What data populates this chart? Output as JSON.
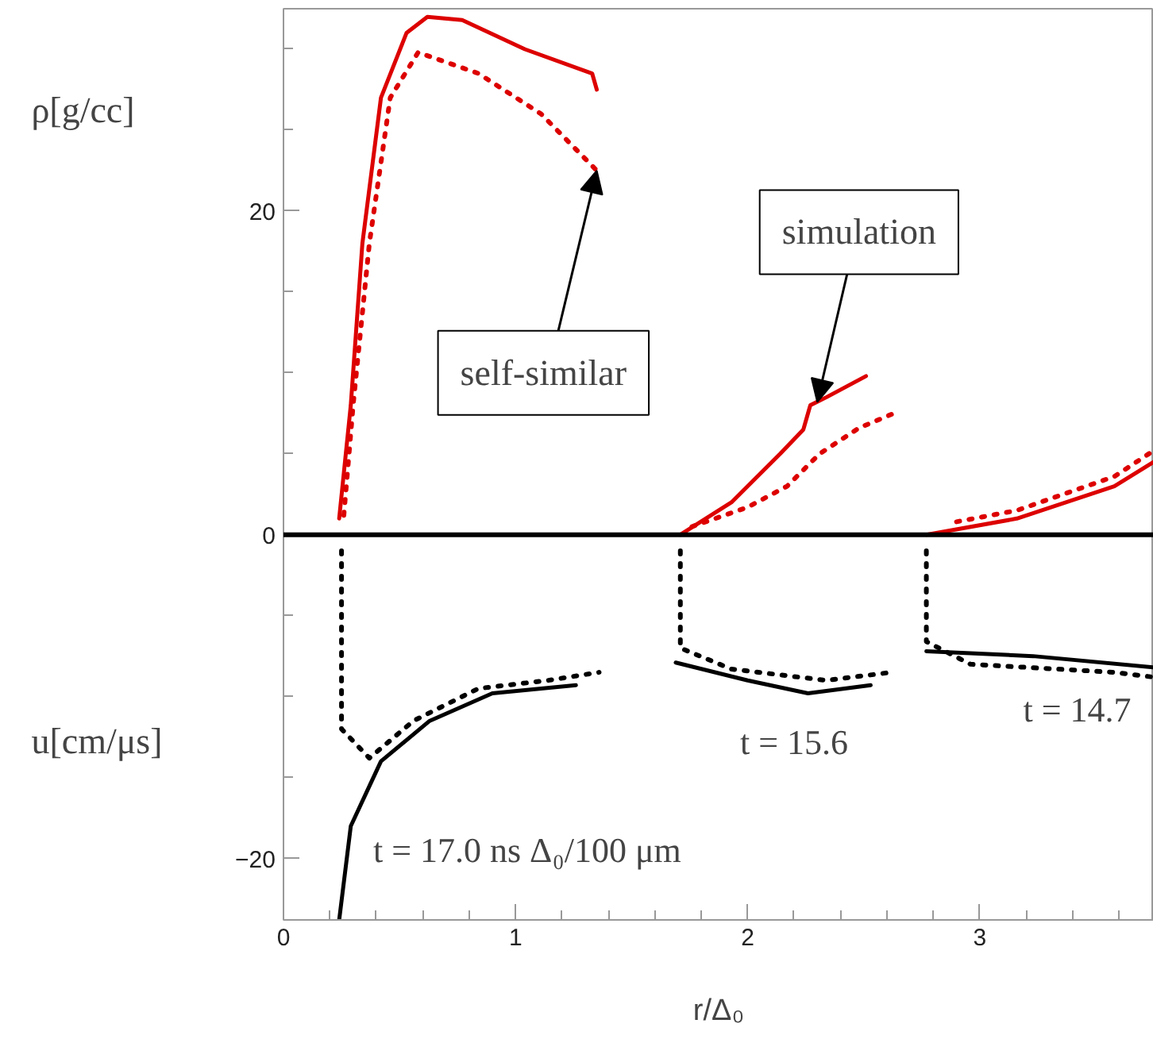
{
  "chart_data": {
    "type": "line",
    "xlabel": "r/Δ₀",
    "ylabel": "ρ[g/cc]",
    "xlim": [
      0,
      3.75
    ],
    "ylim": [
      -23.8,
      32.5
    ],
    "xticks": [
      0,
      1,
      2,
      3
    ],
    "yticks": [
      -20,
      0,
      20
    ],
    "grid": false,
    "ref_lines": [
      {
        "axis": "y",
        "value": 0,
        "color": "#000000"
      }
    ],
    "series": [
      {
        "color": "#dd0000",
        "line_style": "solid",
        "x": [
          0.24,
          0.29,
          0.34,
          0.42,
          0.53,
          0.62,
          0.77,
          1.04,
          1.33,
          1.35
        ],
        "values": [
          1,
          8,
          18,
          27,
          31,
          32,
          31.8,
          30,
          28.5,
          27.5
        ]
      },
      {
        "color": "#dd0000",
        "line_style": "solid",
        "x": [
          1.71,
          1.93,
          2.14,
          2.24,
          2.27,
          2.34,
          2.51
        ],
        "values": [
          0,
          2,
          5,
          6.5,
          8,
          8.5,
          9.8
        ]
      },
      {
        "color": "#dd0000",
        "line_style": "solid",
        "x": [
          2.77,
          3.16,
          3.58,
          3.75
        ],
        "values": [
          0,
          1,
          3,
          4.5
        ]
      },
      {
        "color": "#dd0000",
        "line_style": "dotted",
        "x": [
          0.26,
          0.3,
          0.37,
          0.46,
          0.58,
          0.84,
          1.11,
          1.35
        ],
        "values": [
          1.2,
          8,
          18,
          27,
          29.8,
          28.5,
          26,
          22.5
        ]
      },
      {
        "color": "#dd0000",
        "line_style": "dotted",
        "x": [
          1.76,
          2.0,
          2.17,
          2.31,
          2.48,
          2.63
        ],
        "values": [
          0.5,
          1.7,
          3,
          5,
          6.6,
          7.5
        ]
      },
      {
        "color": "#dd0000",
        "line_style": "dotted",
        "x": [
          2.9,
          3.16,
          3.58,
          3.75
        ],
        "values": [
          0.8,
          1.5,
          3.6,
          5.2
        ]
      },
      {
        "color": "#000000",
        "line_style": "solid",
        "x": [
          0.24,
          0.29,
          0.42,
          0.63,
          0.9,
          1.26
        ],
        "values": [
          -23.8,
          -18,
          -14,
          -11.5,
          -9.8,
          -9.3
        ]
      },
      {
        "color": "#000000",
        "line_style": "solid",
        "x": [
          1.69,
          2.0,
          2.26,
          2.53
        ],
        "values": [
          -7.9,
          -9,
          -9.8,
          -9.3
        ]
      },
      {
        "color": "#000000",
        "line_style": "solid",
        "x": [
          2.77,
          3.23,
          3.75
        ],
        "values": [
          -7.2,
          -7.5,
          -8.2
        ]
      },
      {
        "color": "#000000",
        "line_style": "dotted",
        "x": [
          0.25,
          0.25,
          0.37,
          0.56,
          0.84,
          1.14,
          1.36
        ],
        "values": [
          -1,
          -12,
          -13.8,
          -11.5,
          -9.5,
          -9,
          -8.5
        ]
      },
      {
        "color": "#000000",
        "line_style": "dotted",
        "x": [
          1.71,
          1.71,
          1.93,
          2.34,
          2.62
        ],
        "values": [
          -1,
          -7,
          -8.3,
          -9,
          -8.5
        ]
      },
      {
        "color": "#000000",
        "line_style": "dotted",
        "x": [
          2.77,
          2.77,
          2.96,
          3.58,
          3.75
        ],
        "values": [
          -1,
          -6.6,
          -8,
          -8.5,
          -8.8
        ]
      }
    ],
    "annotations": [
      {
        "text": "self-similar",
        "x": 1.35,
        "y": 22.5
      },
      {
        "text": "simulation",
        "x": 2.3,
        "y": 8.2
      },
      "t = 17.0 ns Δ₀/100 μm",
      "t = 15.6",
      "t = 14.7",
      "u[cm/μs]"
    ]
  }
}
